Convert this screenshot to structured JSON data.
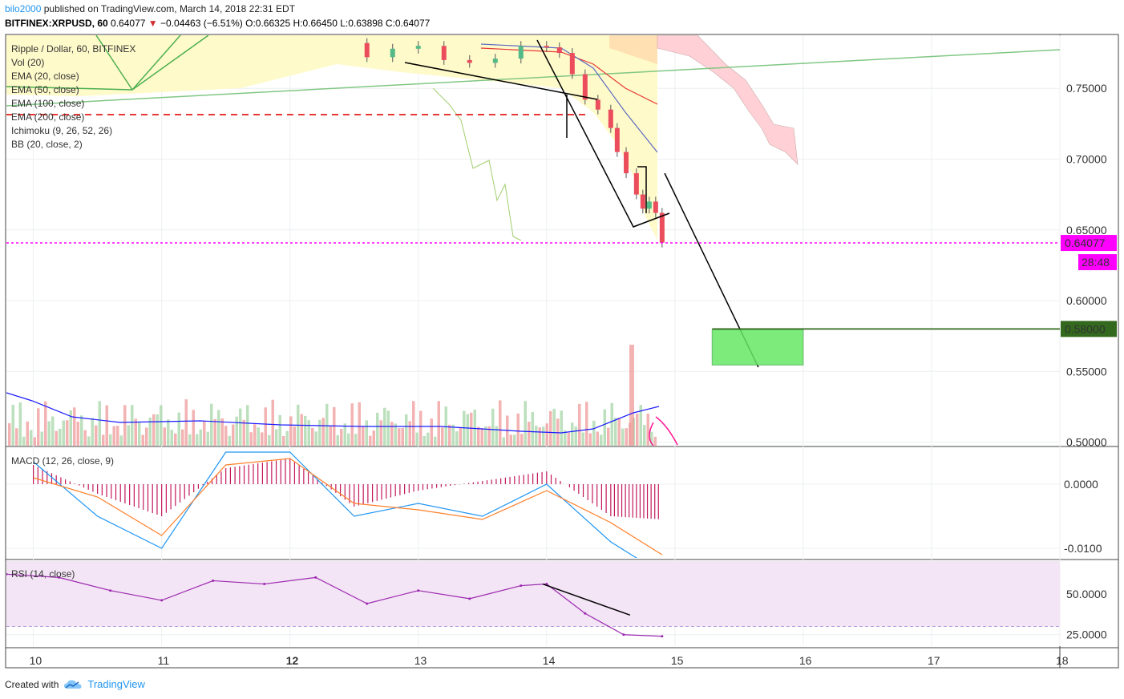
{
  "header": {
    "author": "bilo2000",
    "published": "published on TradingView.com, March 14, 2018 22:31 EDT",
    "symbol": "BITFINEX:XRPUSD, 60",
    "last": "0.64077",
    "change_arrow": "▼",
    "change": "−0.04463 (−6.51%)",
    "ohlc": "O:0.66325 H:0.66450 L:0.63898 C:0.64077"
  },
  "legend": [
    "Ripple / Dollar, 60, BITFINEX",
    "Vol (20)",
    "EMA (20, close)",
    "EMA (50, close)",
    "EMA (100, close)",
    "EMA (200, close)",
    "Ichimoku (9, 26, 52, 26)",
    "BB (20, close, 2)"
  ],
  "footer": {
    "created_with": "Created with",
    "brand": "TradingView"
  },
  "colors": {
    "bull": "#53b987",
    "bear": "#eb4d5c",
    "last_price": "#ff00ff",
    "target": "#33691e",
    "target_zone": "#66e866",
    "macd_line": "#2196f3",
    "signal_line": "#ff7f2a",
    "histogram": "#c2185b",
    "rsi": "#9c27b0",
    "rsi_band": "#f3e5f5",
    "kumo_bear": "#ffcdd2",
    "bb_fill": "#fff9c4"
  },
  "chart_data": [
    {
      "type": "line",
      "name": "price",
      "y_ticks": [
        0.75,
        0.7,
        0.65,
        0.6,
        0.55,
        0.5
      ],
      "y_tick_labels": [
        "0.75000",
        "0.70000",
        "0.65000",
        "0.60000",
        "0.55000",
        "0.50000"
      ],
      "ylim": [
        0.4975,
        0.7875
      ],
      "x_ticks": [
        10,
        11,
        12,
        13,
        14,
        15,
        16,
        17,
        18
      ],
      "x_tick_labels": [
        "10",
        "11",
        "12",
        "13",
        "14",
        "15",
        "16",
        "17",
        "18"
      ],
      "bold_x_ticks": [
        "12"
      ],
      "xlim": [
        9.79,
        18.0
      ],
      "last_price": 0.64077,
      "last_price_label": "0.64077",
      "countdown_label": "28:48",
      "target_price": 0.58,
      "target_label": "0.58000",
      "target_zone": {
        "x": [
          15.29,
          16.0
        ],
        "y": [
          0.5545,
          0.5795
        ]
      },
      "projection_line": {
        "x": [
          14.92,
          15.65
        ],
        "y": [
          0.69,
          0.553
        ]
      },
      "pattern_lines": [
        {
          "x": [
            14.19,
            14.69,
            14.98
          ],
          "y": [
            0.744,
            0.652,
            0.66
          ]
        }
      ],
      "close": [
        {
          "x": 12.4,
          "y": 0.782
        },
        {
          "x": 12.6,
          "y": 0.772
        },
        {
          "x": 12.8,
          "y": 0.778
        },
        {
          "x": 13.0,
          "y": 0.78
        },
        {
          "x": 13.2,
          "y": 0.77
        },
        {
          "x": 13.4,
          "y": 0.768
        },
        {
          "x": 13.6,
          "y": 0.771
        },
        {
          "x": 13.8,
          "y": 0.78
        },
        {
          "x": 14.0,
          "y": 0.779
        },
        {
          "x": 14.1,
          "y": 0.775
        },
        {
          "x": 14.2,
          "y": 0.76
        },
        {
          "x": 14.3,
          "y": 0.742
        },
        {
          "x": 14.4,
          "y": 0.735
        },
        {
          "x": 14.5,
          "y": 0.722
        },
        {
          "x": 14.55,
          "y": 0.705
        },
        {
          "x": 14.62,
          "y": 0.69
        },
        {
          "x": 14.7,
          "y": 0.675
        },
        {
          "x": 14.75,
          "y": 0.665
        },
        {
          "x": 14.8,
          "y": 0.67
        },
        {
          "x": 14.85,
          "y": 0.662
        },
        {
          "x": 14.9,
          "y": 0.641
        }
      ]
    },
    {
      "type": "bar",
      "name": "MACD (12, 26, close, 9)",
      "y_ticks": [
        0.0,
        -0.01
      ],
      "y_tick_labels": [
        "0.0000",
        "-0.0100"
      ],
      "ylim": [
        -0.0115,
        0.0055
      ],
      "x": [
        10.0,
        10.5,
        11.0,
        11.5,
        12.0,
        12.5,
        13.0,
        13.5,
        14.0,
        14.5,
        14.9
      ],
      "histogram": [
        0.003,
        -0.0015,
        -0.005,
        0.0025,
        0.004,
        -0.0035,
        -0.001,
        0.0005,
        0.002,
        -0.005,
        -0.0055
      ],
      "macd": [
        0.0035,
        -0.005,
        -0.01,
        0.005,
        0.005,
        -0.005,
        -0.003,
        -0.005,
        0.0,
        -0.009,
        -0.014
      ],
      "signal": [
        0.001,
        -0.002,
        -0.008,
        0.003,
        0.004,
        -0.003,
        -0.004,
        -0.0055,
        -0.001,
        -0.006,
        -0.011
      ]
    },
    {
      "type": "line",
      "name": "RSI (14, close)",
      "y_ticks": [
        50,
        25
      ],
      "y_tick_labels": [
        "50.0000",
        "25.0000"
      ],
      "ylim": [
        18,
        70
      ],
      "band": [
        30,
        70
      ],
      "x": [
        9.79,
        10.2,
        10.6,
        11.0,
        11.4,
        11.8,
        12.2,
        12.6,
        13.0,
        13.4,
        13.8,
        14.0,
        14.3,
        14.6,
        14.9
      ],
      "values": [
        62,
        60,
        52,
        46,
        58,
        56,
        60,
        44,
        52,
        47,
        55,
        56,
        38,
        25,
        24
      ],
      "trend_line": {
        "x": [
          13.97,
          14.65
        ],
        "y": [
          56,
          37
        ]
      }
    }
  ]
}
